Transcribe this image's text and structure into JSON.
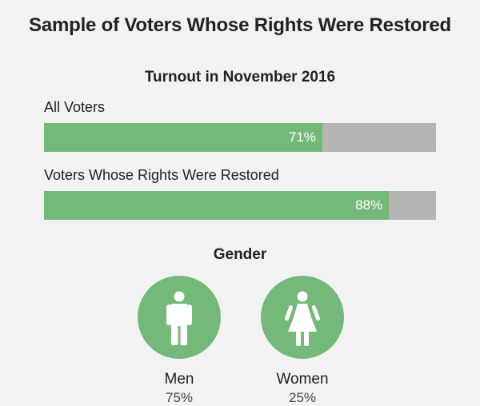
{
  "title": "Sample of Voters Whose Rights Were Restored",
  "chart_data": [
    {
      "type": "bar",
      "title": "Turnout in November 2016",
      "categories": [
        "All Voters",
        "Voters Whose Rights Were Restored"
      ],
      "values": [
        71,
        88
      ],
      "value_labels": [
        "71%",
        "88%"
      ],
      "ylim": [
        0,
        100
      ],
      "colors": {
        "fill": "#74b97a",
        "track": "#b5b5b5"
      }
    },
    {
      "type": "pie",
      "title": "Gender",
      "categories": [
        "Men",
        "Women"
      ],
      "values": [
        75,
        25
      ],
      "value_labels": [
        "75%",
        "25%"
      ],
      "icons": [
        "man-icon",
        "woman-icon"
      ],
      "colors": {
        "circle": "#74b97a"
      }
    }
  ]
}
